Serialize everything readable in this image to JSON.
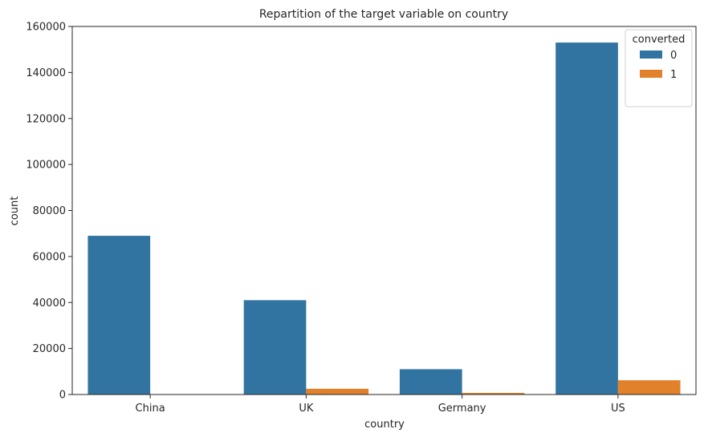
{
  "chart_data": {
    "type": "bar",
    "title": "Repartition of the target variable on country",
    "xlabel": "country",
    "ylabel": "count",
    "categories": [
      "China",
      "UK",
      "Germany",
      "US"
    ],
    "series": [
      {
        "name": "0",
        "values": [
          69000,
          41000,
          11000,
          153000
        ],
        "color": "#3274a1"
      },
      {
        "name": "1",
        "values": [
          100,
          2500,
          700,
          6200
        ],
        "color": "#e1812c"
      }
    ],
    "ylim": [
      0,
      160000
    ],
    "yticks": [
      0,
      20000,
      40000,
      60000,
      80000,
      100000,
      120000,
      140000,
      160000
    ],
    "ytick_labels": [
      "0",
      "20000",
      "40000",
      "60000",
      "80000",
      "100000",
      "120000",
      "140000",
      "160000"
    ],
    "legend": {
      "title": "converted",
      "placement": "top-right"
    },
    "grid": false
  }
}
